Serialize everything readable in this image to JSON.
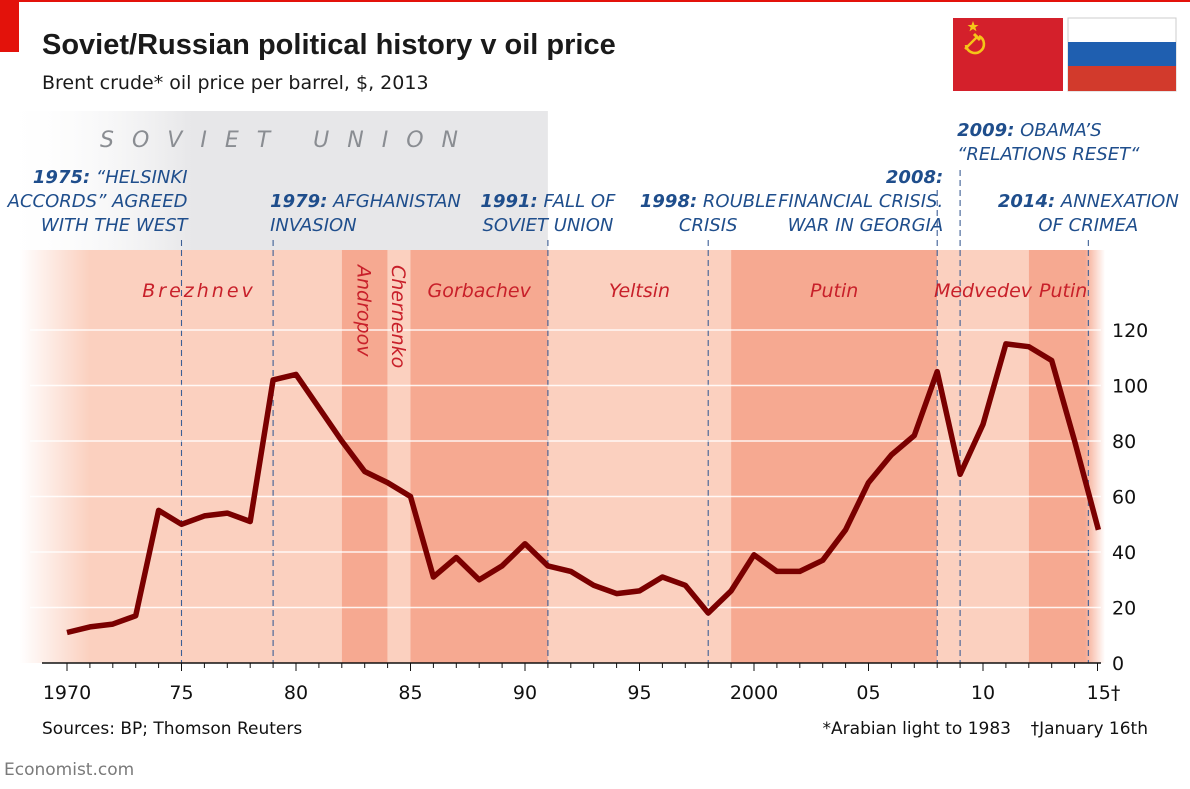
{
  "header": {
    "title": "Soviet/Russian political history v oil price",
    "subtitle": "Brent crude* oil price per barrel, $, 2013"
  },
  "era_label": "SOVIET UNION",
  "flags": [
    {
      "name": "soviet-flag",
      "colors": [
        "#d4202b",
        "#f5c518"
      ]
    },
    {
      "name": "russian-flag",
      "colors": [
        "#ffffff",
        "#1f5fb0",
        "#d23a2c"
      ]
    }
  ],
  "colors": {
    "line": "#7a0000",
    "accent_red": "#e3120b",
    "leader_text": "#c8202a",
    "annotation_text": "#1f4e8c",
    "band_light": "#fbd0bf",
    "band_dark": "#f6a991",
    "soviet_band": "#e7e7e9"
  },
  "leaders": [
    {
      "name": "Brezhnev",
      "start": 1970,
      "end": 1982,
      "shade": "light"
    },
    {
      "name": "Andropov",
      "start": 1982,
      "end": 1984,
      "shade": "dark",
      "vertical": true
    },
    {
      "name": "Chernenko",
      "start": 1984,
      "end": 1985,
      "shade": "light",
      "vertical": true
    },
    {
      "name": "Gorbachev",
      "start": 1985,
      "end": 1991,
      "shade": "dark"
    },
    {
      "name": "Yeltsin",
      "start": 1991,
      "end": 1999,
      "shade": "light"
    },
    {
      "name": "Putin",
      "start": 1999,
      "end": 2008,
      "shade": "dark"
    },
    {
      "name": "Medvedev",
      "start": 2008,
      "end": 2012,
      "shade": "light"
    },
    {
      "name": "Putin",
      "start": 2012,
      "end": 2015,
      "shade": "dark"
    }
  ],
  "annotations": [
    {
      "x": 1975,
      "year": "1975:",
      "lines": [
        "“HELSINKI",
        "ACCORDS” AGREED",
        "WITH THE WEST"
      ],
      "align": "right"
    },
    {
      "x": 1979,
      "year": "1979:",
      "lines": [
        "AFGHANISTAN",
        "INVASION"
      ],
      "align": "left"
    },
    {
      "x": 1991,
      "year": "1991:",
      "lines": [
        "FALL OF",
        "SOVIET UNION"
      ],
      "align": "center"
    },
    {
      "x": 1998,
      "year": "1998:",
      "lines": [
        "ROUBLE",
        "CRISIS"
      ],
      "align": "center"
    },
    {
      "x": 2008,
      "year": "2008:",
      "lines": [
        "FINANCIAL CRISIS.",
        "WAR IN GEORGIA"
      ],
      "align": "right"
    },
    {
      "x": 2009,
      "year": "2009:",
      "lines": [
        "OBAMA’S",
        "“RELATIONS RESET“"
      ],
      "align": "left"
    },
    {
      "x": 2014.6,
      "year": "2014:",
      "lines": [
        "ANNEXATION",
        "OF CRIMEA"
      ],
      "align": "center"
    }
  ],
  "chart_data": {
    "type": "line",
    "title": "Soviet/Russian political history v oil price",
    "subtitle": "Brent crude* oil price per barrel, $, 2013",
    "x_ticks": [
      1970,
      1975,
      1980,
      1985,
      1990,
      1995,
      2000,
      2005,
      2010,
      2015
    ],
    "x_tick_labels": [
      "1970",
      "75",
      "80",
      "85",
      "90",
      "95",
      "2000",
      "05",
      "10",
      "15†"
    ],
    "y_ticks": [
      0,
      20,
      40,
      60,
      80,
      100,
      120
    ],
    "y_tick_labels": [
      "0",
      "20",
      "40",
      "60",
      "80",
      "100",
      "120"
    ],
    "xlim": [
      1969,
      2016
    ],
    "ylim": [
      0,
      120
    ],
    "y_axis_side": "right",
    "series": [
      {
        "x": [
          1970,
          1971,
          1972,
          1973,
          1974,
          1975,
          1976,
          1977,
          1978,
          1979,
          1980,
          1981,
          1982,
          1983,
          1984,
          1985,
          1986,
          1987,
          1988,
          1989,
          1990,
          1991,
          1992,
          1993,
          1994,
          1995,
          1996,
          1997,
          1998,
          1999,
          2000,
          2001,
          2002,
          2003,
          2004,
          2005,
          2006,
          2007,
          2008,
          2009,
          2010,
          2011,
          2012,
          2013,
          2014,
          2015.04
        ],
        "y": [
          11,
          13,
          14,
          17,
          55,
          50,
          53,
          54,
          51,
          102,
          104,
          92,
          80,
          69,
          65,
          60,
          31,
          38,
          30,
          35,
          43,
          35,
          33,
          28,
          25,
          26,
          31,
          28,
          18,
          26,
          39,
          33,
          33,
          37,
          48,
          65,
          75,
          82,
          105,
          68,
          86,
          115,
          114,
          109,
          80,
          48
        ]
      }
    ]
  },
  "footer": {
    "sources": "Sources: BP; Thomson Reuters",
    "note_star": "*Arabian light to 1983",
    "note_dagger": "†January 16th",
    "brand": "Economist.com"
  }
}
